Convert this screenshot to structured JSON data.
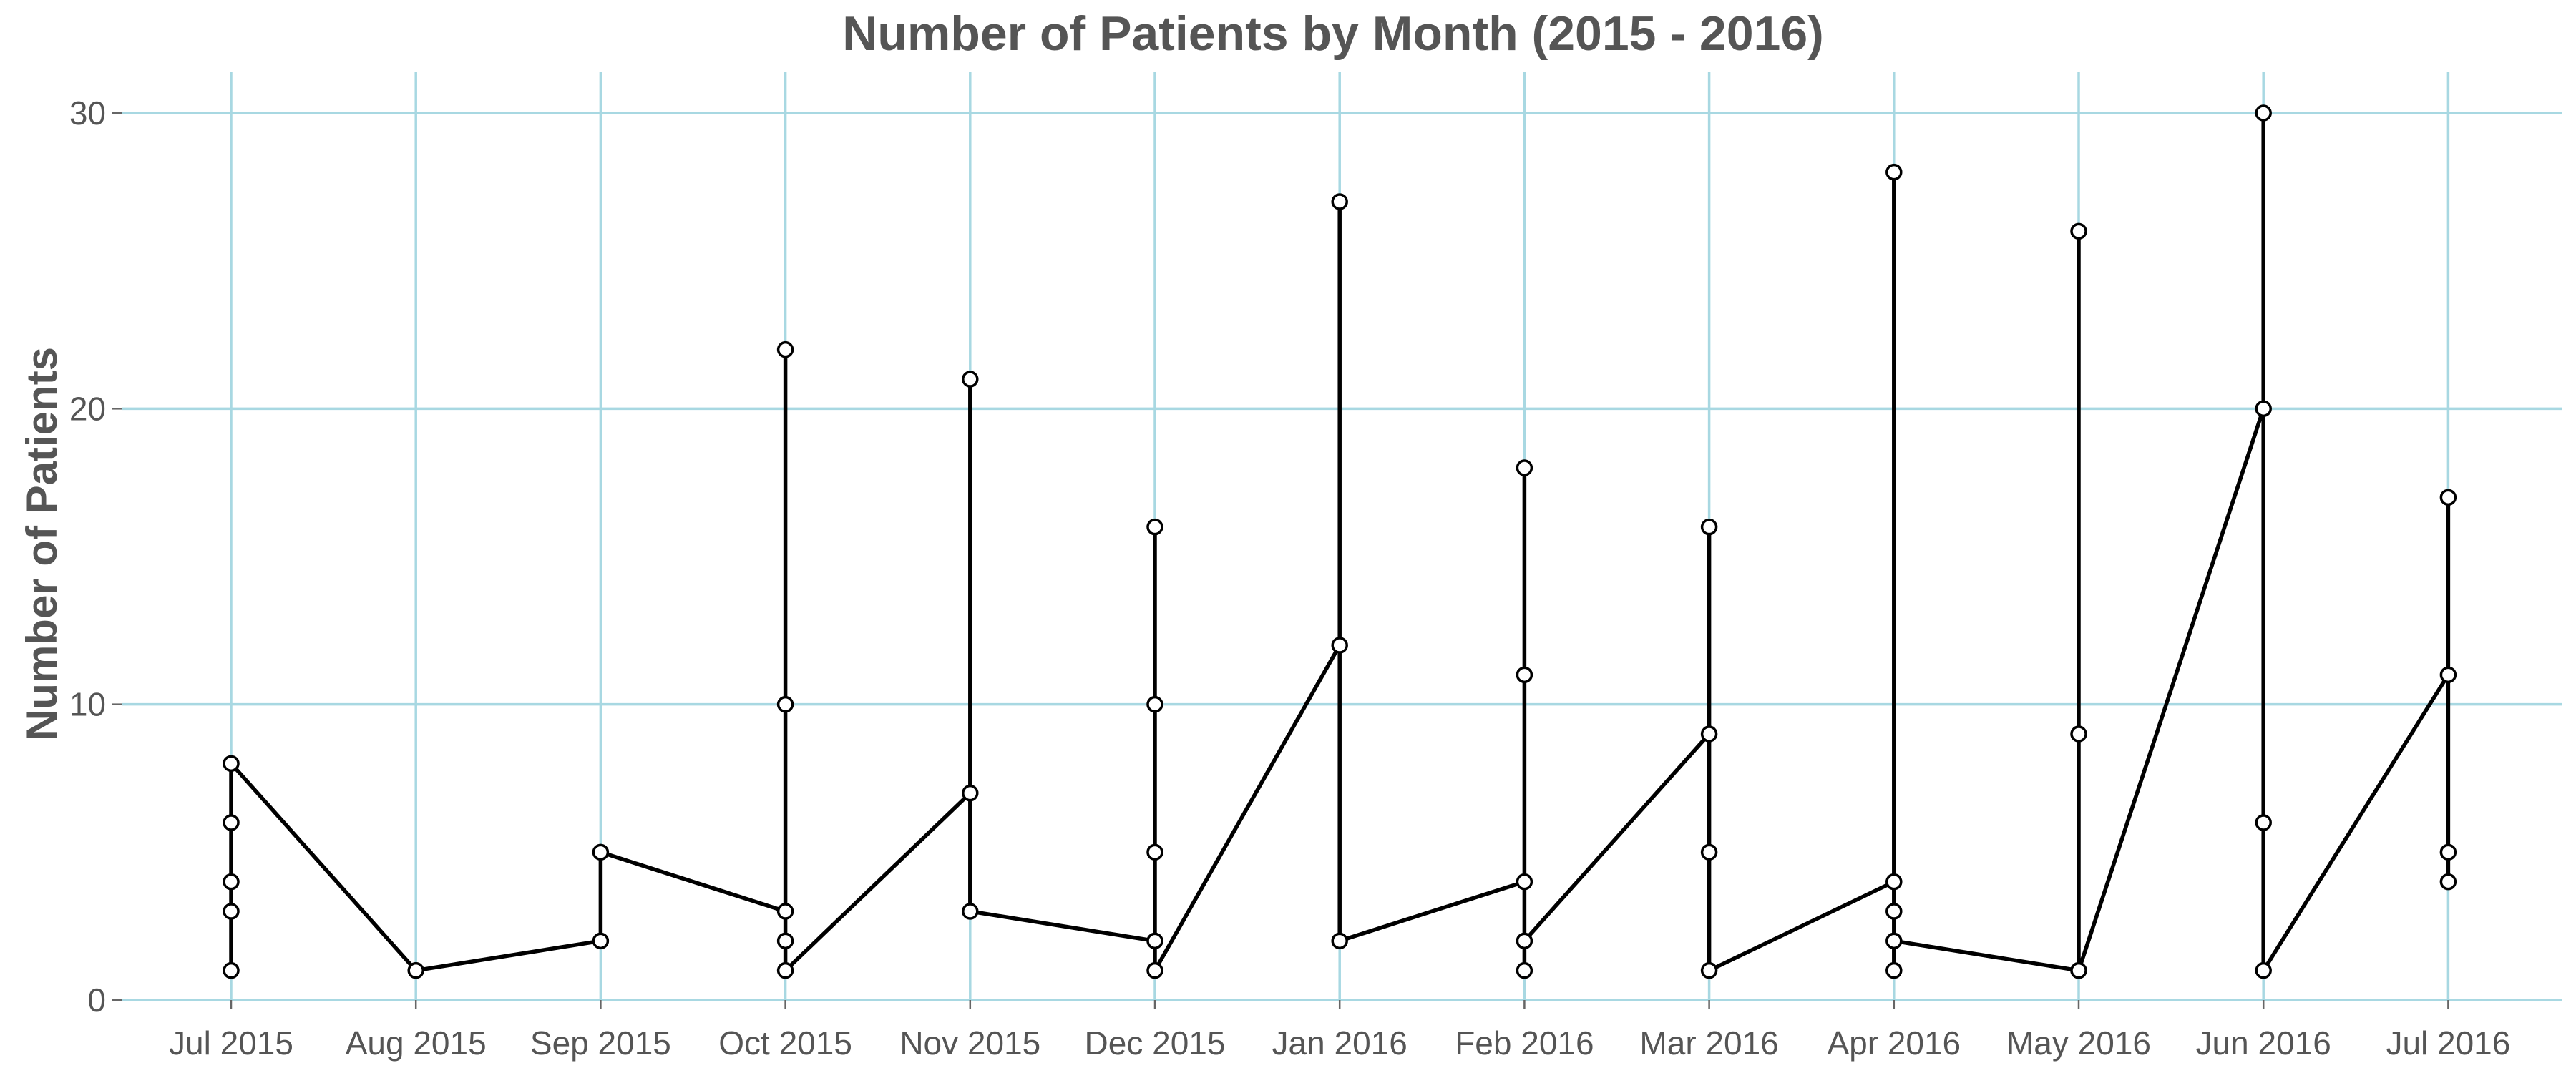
{
  "chart_data": {
    "type": "line",
    "title": "Number of Patients by Month (2015 - 2016)",
    "xlabel": "",
    "ylabel": "Number of Patients",
    "ylim": [
      0,
      30
    ],
    "y_ticks": [
      0,
      10,
      20,
      30
    ],
    "x_tick_labels": [
      "Jul 2015",
      "Aug 2015",
      "Sep 2015",
      "Oct 2015",
      "Nov 2015",
      "Dec 2015",
      "Jan 2016",
      "Feb 2016",
      "Mar 2016",
      "Apr 2016",
      "May 2016",
      "Jun 2016",
      "Jul 2016"
    ],
    "grid": true,
    "legend": "none",
    "line_color": "#000000",
    "marker_fill": "#ffffff",
    "grid_color": "#a8d8e2",
    "series": [
      {
        "points": [
          {
            "x": "Jul 2015",
            "y": 1
          },
          {
            "x": "Jul 2015",
            "y": 3
          },
          {
            "x": "Jul 2015",
            "y": 4
          },
          {
            "x": "Jul 2015",
            "y": 6
          },
          {
            "x": "Jul 2015",
            "y": 8
          },
          {
            "x": "Aug 2015",
            "y": 1
          },
          {
            "x": "Sep 2015",
            "y": 2
          },
          {
            "x": "Sep 2015",
            "y": 5
          },
          {
            "x": "Oct 2015",
            "y": 3
          },
          {
            "x": "Oct 2015",
            "y": 22
          },
          {
            "x": "Oct 2015",
            "y": 10
          },
          {
            "x": "Oct 2015",
            "y": 2
          },
          {
            "x": "Oct 2015",
            "y": 1
          },
          {
            "x": "Nov 2015",
            "y": 7
          },
          {
            "x": "Nov 2015",
            "y": 21
          },
          {
            "x": "Nov 2015",
            "y": 3
          },
          {
            "x": "Dec 2015",
            "y": 2
          },
          {
            "x": "Dec 2015",
            "y": 16
          },
          {
            "x": "Dec 2015",
            "y": 10
          },
          {
            "x": "Dec 2015",
            "y": 5
          },
          {
            "x": "Dec 2015",
            "y": 1
          },
          {
            "x": "Jan 2016",
            "y": 12
          },
          {
            "x": "Jan 2016",
            "y": 27
          },
          {
            "x": "Jan 2016",
            "y": 2
          },
          {
            "x": "Feb 2016",
            "y": 4
          },
          {
            "x": "Feb 2016",
            "y": 18
          },
          {
            "x": "Feb 2016",
            "y": 11
          },
          {
            "x": "Feb 2016",
            "y": 1
          },
          {
            "x": "Feb 2016",
            "y": 2
          },
          {
            "x": "Mar 2016",
            "y": 9
          },
          {
            "x": "Mar 2016",
            "y": 16
          },
          {
            "x": "Mar 2016",
            "y": 5
          },
          {
            "x": "Mar 2016",
            "y": 1
          },
          {
            "x": "Apr 2016",
            "y": 4
          },
          {
            "x": "Apr 2016",
            "y": 28
          },
          {
            "x": "Apr 2016",
            "y": 3
          },
          {
            "x": "Apr 2016",
            "y": 1
          },
          {
            "x": "Apr 2016",
            "y": 2
          },
          {
            "x": "May 2016",
            "y": 1
          },
          {
            "x": "May 2016",
            "y": 26
          },
          {
            "x": "May 2016",
            "y": 9
          },
          {
            "x": "May 2016",
            "y": 1
          },
          {
            "x": "Jun 2016",
            "y": 20
          },
          {
            "x": "Jun 2016",
            "y": 30
          },
          {
            "x": "Jun 2016",
            "y": 6
          },
          {
            "x": "Jun 2016",
            "y": 1
          },
          {
            "x": "Jul 2016",
            "y": 11
          },
          {
            "x": "Jul 2016",
            "y": 17
          },
          {
            "x": "Jul 2016",
            "y": 5
          },
          {
            "x": "Jul 2016",
            "y": 4
          }
        ]
      }
    ]
  }
}
